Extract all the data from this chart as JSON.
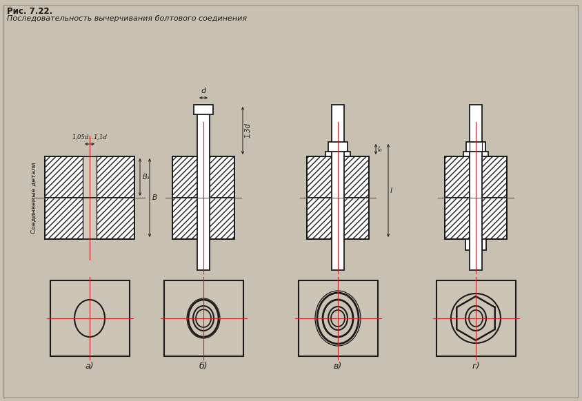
{
  "title_bold": "Рис. 7.22.",
  "title_sub": "Последовательность вычерчивания болтового соединения",
  "bg_color": "#c8c0b0",
  "inner_bg": "#d4ccbc",
  "line_color": "#1a1a1a",
  "hatch_color": "#444444",
  "red_line": "#cc2222",
  "labels_bottom": [
    "а)",
    "б)",
    "в)",
    "г)"
  ],
  "label_top_left": "Соединяемые детали",
  "label_dim1": "1,05d...1,1d",
  "label_dim_d": "d",
  "label_dim_13d": "1,3d",
  "label_dim_l0": "l₀",
  "label_dim_l": "l",
  "label_B": "B",
  "label_B1": "B₁"
}
